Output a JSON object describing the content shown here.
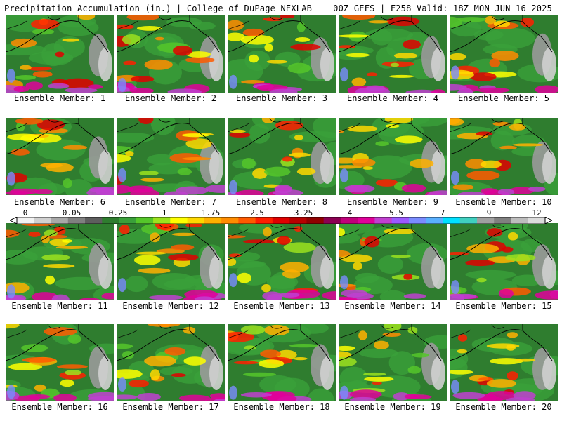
{
  "header": {
    "title": "Precipitation Accumulation (in.) | College of DuPage NEXLAB",
    "run_info": "00Z GEFS | F258 Valid: 18Z MON JUN 16 2025"
  },
  "members": [
    "Ensemble Member: 1",
    "Ensemble Member: 2",
    "Ensemble Member: 3",
    "Ensemble Member: 4",
    "Ensemble Member: 5",
    "Ensemble Member: 6",
    "Ensemble Member: 7",
    "Ensemble Member: 8",
    "Ensemble Member: 9",
    "Ensemble Member: 10",
    "Ensemble Member: 11",
    "Ensemble Member: 12",
    "Ensemble Member: 13",
    "Ensemble Member: 14",
    "Ensemble Member: 15",
    "Ensemble Member: 16",
    "Ensemble Member: 17",
    "Ensemble Member: 18",
    "Ensemble Member: 19",
    "Ensemble Member: 20"
  ],
  "scale": {
    "labels": [
      "0",
      "0.05",
      "0.25",
      "1",
      "1.75",
      "2.5",
      "3.25",
      "4",
      "5.5",
      "7",
      "9",
      "12"
    ],
    "colors": [
      "#f2f2f2",
      "#d0d0d0",
      "#a8a8a8",
      "#808080",
      "#5e5e5e",
      "#2f7d2f",
      "#3aa03a",
      "#55c62a",
      "#9be21e",
      "#ffff00",
      "#ffd800",
      "#ffb000",
      "#ff8c00",
      "#ff5a00",
      "#ff1e00",
      "#e00000",
      "#b80000",
      "#900000",
      "#8b0052",
      "#c0007a",
      "#e0009a",
      "#c040d0",
      "#9b59ff",
      "#7a8cff",
      "#5ab0ff",
      "#00e0ff",
      "#40d0c0",
      "#a0a0a0",
      "#808080",
      "#bdbdbd",
      "#dcdcdc"
    ]
  }
}
